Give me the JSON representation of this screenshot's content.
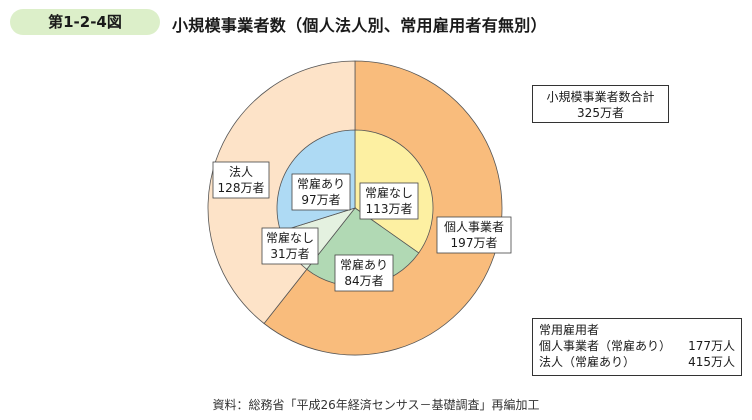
{
  "figure_number": "第1-2-4図",
  "title": "小規模事業者数（個人法人別、常用雇用者有無別）",
  "total_box": {
    "label": "小規模事業者数合計",
    "value": "325万者"
  },
  "employees_box": {
    "heading": "常用雇用者",
    "rows": [
      {
        "label": "個人事業者（常雇あり）",
        "value": "177万人"
      },
      {
        "label": "法人（常雇あり）",
        "value": "415万人"
      }
    ]
  },
  "source": "資料：総務省「平成26年経済センサス－基礎調査」再編加工",
  "chart_data": {
    "type": "pie",
    "subtype": "nested-donut",
    "unit": "万者",
    "outer_ring": [
      {
        "name": "個人事業者",
        "value": 197,
        "label": "197万者",
        "color": "#f9bc7c"
      },
      {
        "name": "法人",
        "value": 128,
        "label": "128万者",
        "color": "#fde3c8"
      }
    ],
    "inner_ring": [
      {
        "name": "常雇なし",
        "value": 113,
        "label": "113万者",
        "color": "#fdf0a2",
        "parent": "個人事業者"
      },
      {
        "name": "常雇あり",
        "value": 84,
        "label": "84万者",
        "color": "#b1d9b4",
        "parent": "個人事業者"
      },
      {
        "name": "常雇なし",
        "value": 31,
        "label": "31万者",
        "color": "#e4f1e0",
        "parent": "法人"
      },
      {
        "name": "常雇あり",
        "value": 97,
        "label": "97万者",
        "color": "#aedaf4",
        "parent": "法人"
      }
    ],
    "total": 325
  }
}
